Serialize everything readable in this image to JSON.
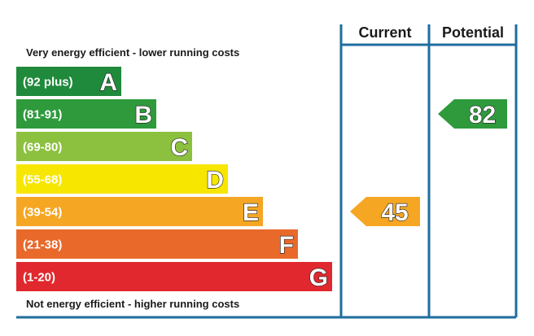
{
  "chart_data": {
    "type": "bar",
    "title": "",
    "top_caption": "Very energy efficient - lower running costs",
    "bottom_caption": "Not energy efficient - higher running costs",
    "columns": {
      "current": "Current",
      "potential": "Potential"
    },
    "bands": [
      {
        "letter": "A",
        "range": "(92 plus)",
        "min": 92,
        "max": 100,
        "color": "#008054"
      },
      {
        "letter": "B",
        "range": "(81-91)",
        "min": 81,
        "max": 91,
        "color": "#19b459"
      },
      {
        "letter": "C",
        "range": "(69-80)",
        "min": 69,
        "max": 80,
        "color": "#8dce46"
      },
      {
        "letter": "D",
        "range": "(55-68)",
        "min": 55,
        "max": 68,
        "color": "#ffd500"
      },
      {
        "letter": "E",
        "range": "(39-54)",
        "min": 39,
        "max": 54,
        "color": "#fcaa65"
      },
      {
        "letter": "F",
        "range": "(21-38)",
        "min": 21,
        "max": 38,
        "color": "#ef8023"
      },
      {
        "letter": "G",
        "range": "(1-20)",
        "min": 1,
        "max": 20,
        "color": "#e9153b"
      }
    ],
    "ratings": {
      "current": {
        "value": 45,
        "band": "E"
      },
      "potential": {
        "value": 82,
        "band": "B"
      }
    },
    "display_colors": {
      "A": "#1f8a3b",
      "B": "#2e9a3c",
      "C": "#8cc03f",
      "D": "#f7e600",
      "E": "#f5a623",
      "F": "#e8692a",
      "G": "#e0282e",
      "frame": "#1f6d9e"
    }
  }
}
